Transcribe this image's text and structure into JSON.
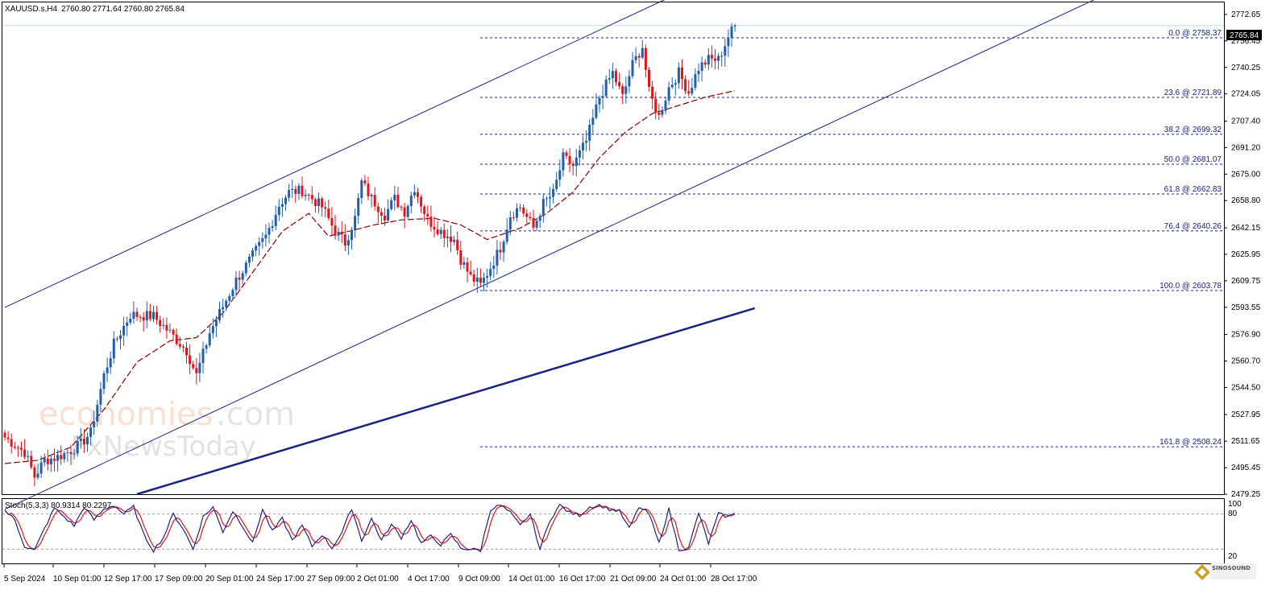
{
  "header": {
    "symbol": "XAUUSD.s,H4",
    "ohlc": "2760.80 2771.64 2760.80 2765.84"
  },
  "current_price": "2765.84",
  "oscillator": {
    "label": "Stoch(5,3,3) 80.9314 80.2297",
    "levels": [
      "100",
      "80",
      "20"
    ]
  },
  "watermark": {
    "part1": "economies",
    "part2": ".com",
    "part3": "FxNewsToday"
  },
  "logo_text": "SINOSOUND",
  "colors": {
    "bull": "#1f5fae",
    "bear": "#e0161b",
    "trend": "#1a237e",
    "ma": "#8b0000",
    "stoch_main": "#1a237e",
    "stoch_signal": "#e0161b",
    "grid": "#b7e3e8"
  },
  "chart_data": {
    "type": "candlestick",
    "title": "XAUUSD.s,H4",
    "ylim": [
      2479.25,
      2780
    ],
    "y_ticks": [
      "2772.65",
      "2756.45",
      "2740.25",
      "2724.05",
      "2707.40",
      "2691.20",
      "2675.00",
      "2658.80",
      "2642.15",
      "2625.95",
      "2609.75",
      "2593.55",
      "2576.90",
      "2560.70",
      "2544.50",
      "2527.95",
      "2511.65",
      "2495.45",
      "2479.25"
    ],
    "x_ticks": [
      "5 Sep 2024",
      "10 Sep 01:00",
      "12 Sep 17:00",
      "17 Sep 09:00",
      "20 Sep 01:00",
      "24 Sep 17:00",
      "27 Sep 09:00",
      "2 Oct 01:00",
      "4 Oct 17:00",
      "9 Oct 09:00",
      "14 Oct 01:00",
      "16 Oct 17:00",
      "21 Oct 09:00",
      "24 Oct 01:00",
      "28 Oct 17:00"
    ],
    "fibonacci": [
      {
        "label": "0.0 @ 2758.37",
        "value": 2758.37
      },
      {
        "label": "23.6 @ 2721.89",
        "value": 2721.89
      },
      {
        "label": "38.2 @ 2699.32",
        "value": 2699.32
      },
      {
        "label": "50.0 @ 2681.07",
        "value": 2681.07
      },
      {
        "label": "61.8 @ 2662.83",
        "value": 2662.83
      },
      {
        "label": "76.4 @ 2640.26",
        "value": 2640.26
      },
      {
        "label": "100.0 @ 2603.78",
        "value": 2603.78
      },
      {
        "label": "161.8 @ 2508.24",
        "value": 2508.24
      }
    ],
    "close_anchors": [
      [
        0,
        2514
      ],
      [
        6,
        2505
      ],
      [
        9,
        2490
      ],
      [
        12,
        2500
      ],
      [
        16,
        2502
      ],
      [
        20,
        2506
      ],
      [
        23,
        2510
      ],
      [
        26,
        2517
      ],
      [
        30,
        2552
      ],
      [
        33,
        2571
      ],
      [
        38,
        2589
      ],
      [
        45,
        2588
      ],
      [
        50,
        2578
      ],
      [
        55,
        2567
      ],
      [
        58,
        2552
      ],
      [
        62,
        2578
      ],
      [
        65,
        2590
      ],
      [
        70,
        2610
      ],
      [
        75,
        2625
      ],
      [
        79,
        2637
      ],
      [
        83,
        2656
      ],
      [
        86,
        2664
      ],
      [
        90,
        2665
      ],
      [
        93,
        2660
      ],
      [
        96,
        2655
      ],
      [
        100,
        2640
      ],
      [
        103,
        2633
      ],
      [
        106,
        2648
      ],
      [
        108,
        2670
      ],
      [
        111,
        2660
      ],
      [
        115,
        2650
      ],
      [
        118,
        2660
      ],
      [
        121,
        2652
      ],
      [
        124,
        2667
      ],
      [
        128,
        2647
      ],
      [
        132,
        2640
      ],
      [
        136,
        2635
      ],
      [
        138,
        2623
      ],
      [
        141,
        2612
      ],
      [
        144,
        2607
      ],
      [
        147,
        2618
      ],
      [
        150,
        2630
      ],
      [
        153,
        2650
      ],
      [
        156,
        2655
      ],
      [
        160,
        2642
      ],
      [
        163,
        2657
      ],
      [
        166,
        2663
      ],
      [
        169,
        2685
      ],
      [
        172,
        2680
      ],
      [
        176,
        2695
      ],
      [
        180,
        2722
      ],
      [
        184,
        2737
      ],
      [
        187,
        2722
      ],
      [
        190,
        2742
      ],
      [
        193,
        2753
      ],
      [
        195,
        2725
      ],
      [
        198,
        2710
      ],
      [
        201,
        2728
      ],
      [
        204,
        2737
      ],
      [
        207,
        2725
      ],
      [
        210,
        2740
      ],
      [
        213,
        2745
      ],
      [
        216,
        2745
      ],
      [
        219,
        2759
      ],
      [
        221,
        2766
      ]
    ],
    "ma_series": [
      [
        0,
        2498
      ],
      [
        10,
        2500
      ],
      [
        20,
        2508
      ],
      [
        30,
        2531
      ],
      [
        40,
        2560
      ],
      [
        50,
        2573
      ],
      [
        58,
        2575
      ],
      [
        66,
        2590
      ],
      [
        74,
        2612
      ],
      [
        84,
        2640
      ],
      [
        92,
        2651
      ],
      [
        98,
        2637
      ],
      [
        104,
        2640
      ],
      [
        112,
        2644
      ],
      [
        120,
        2647
      ],
      [
        130,
        2648
      ],
      [
        138,
        2644
      ],
      [
        146,
        2635
      ],
      [
        156,
        2642
      ],
      [
        164,
        2651
      ],
      [
        172,
        2664
      ],
      [
        180,
        2685
      ],
      [
        188,
        2701
      ],
      [
        196,
        2712
      ],
      [
        204,
        2717
      ],
      [
        212,
        2722
      ],
      [
        221,
        2726
      ]
    ],
    "stochastic": {
      "name": "Stoch(5,3,3)",
      "main": 80.9314,
      "signal": 80.2297,
      "levels": [
        20,
        80
      ],
      "main_anchors": [
        [
          0,
          86
        ],
        [
          3,
          70
        ],
        [
          6,
          25
        ],
        [
          9,
          18
        ],
        [
          12,
          55
        ],
        [
          15,
          90
        ],
        [
          18,
          75
        ],
        [
          21,
          60
        ],
        [
          24,
          92
        ],
        [
          27,
          70
        ],
        [
          30,
          88
        ],
        [
          33,
          95
        ],
        [
          36,
          80
        ],
        [
          39,
          92
        ],
        [
          42,
          45
        ],
        [
          45,
          18
        ],
        [
          48,
          40
        ],
        [
          51,
          80
        ],
        [
          54,
          55
        ],
        [
          57,
          20
        ],
        [
          60,
          75
        ],
        [
          63,
          92
        ],
        [
          66,
          50
        ],
        [
          69,
          85
        ],
        [
          72,
          60
        ],
        [
          75,
          30
        ],
        [
          78,
          88
        ],
        [
          81,
          50
        ],
        [
          84,
          72
        ],
        [
          87,
          35
        ],
        [
          90,
          60
        ],
        [
          93,
          25
        ],
        [
          96,
          45
        ],
        [
          99,
          22
        ],
        [
          102,
          48
        ],
        [
          105,
          90
        ],
        [
          108,
          35
        ],
        [
          111,
          72
        ],
        [
          114,
          35
        ],
        [
          117,
          62
        ],
        [
          120,
          40
        ],
        [
          123,
          70
        ],
        [
          126,
          30
        ],
        [
          129,
          42
        ],
        [
          132,
          28
        ],
        [
          135,
          45
        ],
        [
          138,
          22
        ],
        [
          141,
          20
        ],
        [
          144,
          18
        ],
        [
          147,
          88
        ],
        [
          150,
          95
        ],
        [
          153,
          82
        ],
        [
          156,
          60
        ],
        [
          159,
          80
        ],
        [
          162,
          20
        ],
        [
          165,
          70
        ],
        [
          168,
          95
        ],
        [
          171,
          82
        ],
        [
          174,
          78
        ],
        [
          177,
          92
        ],
        [
          180,
          95
        ],
        [
          183,
          88
        ],
        [
          186,
          85
        ],
        [
          189,
          55
        ],
        [
          192,
          92
        ],
        [
          195,
          80
        ],
        [
          198,
          30
        ],
        [
          201,
          88
        ],
        [
          204,
          20
        ],
        [
          207,
          22
        ],
        [
          210,
          82
        ],
        [
          213,
          30
        ],
        [
          216,
          80
        ],
        [
          219,
          75
        ],
        [
          221,
          81
        ]
      ]
    },
    "channel": {
      "upper": [
        [
          0,
          2593.5
        ],
        [
          216,
          2797
        ]
      ],
      "lower": [
        [
          0,
          2470
        ],
        [
          346,
          2797
        ]
      ],
      "support": [
        [
          40,
          2479.25
        ],
        [
          227,
          2593
        ]
      ],
      "style": "blue trendlines"
    },
    "moving_average": "dashed dark red",
    "grid": false,
    "current_price_line": 2765.84
  }
}
